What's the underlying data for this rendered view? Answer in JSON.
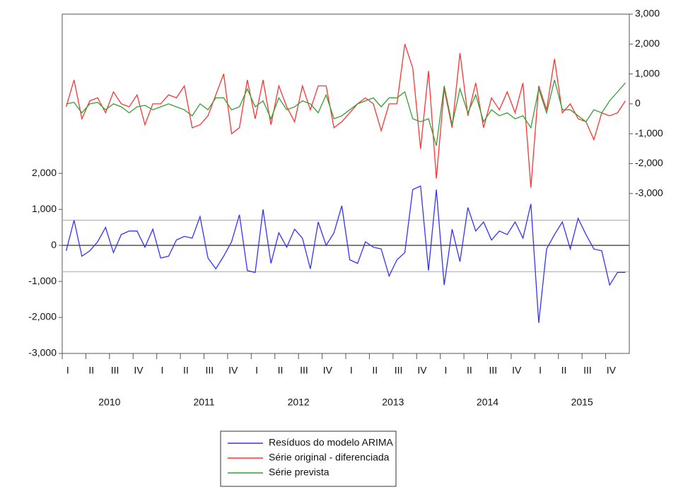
{
  "chart_data": {
    "type": "line",
    "categories": [
      "I",
      null,
      null,
      "II",
      null,
      null,
      "III",
      null,
      null,
      "IV",
      null,
      null,
      "I",
      null,
      null,
      "II",
      null,
      null,
      "III",
      null,
      null,
      "IV",
      null,
      null,
      "I",
      null,
      null,
      "II",
      null,
      null,
      "III",
      null,
      null,
      "IV",
      null,
      null,
      "I",
      null,
      null,
      "II",
      null,
      null,
      "III",
      null,
      null,
      "IV",
      null,
      null,
      "I",
      null,
      null,
      "II",
      null,
      null,
      "III",
      null,
      null,
      "IV",
      null,
      null,
      "I",
      null,
      null,
      "II",
      null,
      null,
      "III",
      null,
      null,
      "IV",
      null,
      null
    ],
    "years": [
      "2010",
      "2011",
      "2012",
      "2013",
      "2014",
      "2015"
    ],
    "series": [
      {
        "name": "Resíduos do modelo ARIMA",
        "color": "#3333ff",
        "axis": "y",
        "values": [
          -150,
          700,
          -300,
          -150,
          100,
          500,
          -200,
          300,
          400,
          400,
          -50,
          450,
          -350,
          -300,
          150,
          250,
          200,
          800,
          -350,
          -650,
          -300,
          100,
          850,
          -700,
          -750,
          1000,
          -500,
          350,
          -50,
          450,
          200,
          -650,
          650,
          0,
          350,
          1100,
          -400,
          -500,
          100,
          -50,
          -100,
          -850,
          -400,
          -200,
          1550,
          1650,
          -700,
          1550,
          -1100,
          450,
          -450,
          1050,
          400,
          650,
          150,
          400,
          300,
          650,
          200,
          1150,
          -2150,
          -100,
          300,
          650,
          -100,
          750,
          300,
          -100,
          -150,
          -1100,
          -750,
          -750
        ]
      },
      {
        "name": "Série original - diferenciada",
        "color": "#ff3333",
        "axis": "y2",
        "values": [
          -100,
          800,
          -500,
          100,
          200,
          -300,
          400,
          0,
          -100,
          300,
          -700,
          0,
          0,
          300,
          200,
          600,
          -800,
          -700,
          -400,
          300,
          1000,
          -1000,
          -800,
          800,
          -500,
          800,
          -700,
          600,
          -100,
          -600,
          600,
          -200,
          600,
          600,
          -800,
          -600,
          -300,
          0,
          200,
          0,
          -900,
          0,
          0,
          2000,
          1200,
          -1500,
          1100,
          -2500,
          500,
          -800,
          1700,
          -400,
          700,
          -800,
          200,
          -200,
          400,
          -300,
          700,
          -2800,
          600,
          -200,
          1500,
          -300,
          0,
          -500,
          -600,
          -1200,
          -300,
          -400,
          -300,
          100
        ]
      },
      {
        "name": "Série prevista",
        "color": "#33a033",
        "axis": "y2",
        "values": [
          0,
          50,
          -300,
          0,
          50,
          -200,
          0,
          -100,
          -300,
          -100,
          -50,
          -200,
          -100,
          0,
          -100,
          -200,
          -400,
          0,
          -200,
          200,
          200,
          -200,
          -100,
          500,
          -100,
          100,
          -500,
          200,
          -200,
          -100,
          100,
          0,
          -300,
          300,
          -500,
          -400,
          -200,
          0,
          100,
          200,
          -100,
          200,
          200,
          400,
          -500,
          -600,
          -500,
          -1400,
          600,
          -700,
          500,
          -300,
          300,
          -600,
          -200,
          -400,
          -300,
          -500,
          -400,
          -800,
          500,
          -300,
          800,
          -200,
          -200,
          -400,
          -600,
          -200,
          -300,
          100,
          400,
          700
        ]
      }
    ],
    "ylim": [
      -3000,
      6420
    ],
    "yticks": [
      {
        "value": -3000,
        "label": "-3,000"
      },
      {
        "value": -2000,
        "label": "-2,000"
      },
      {
        "value": -1000,
        "label": "-1,000"
      },
      0,
      {
        "value": 1000,
        "label": "1,000"
      },
      {
        "value": 2000,
        "label": "2,000"
      }
    ],
    "y2lim": [
      -8350,
      3000
    ],
    "y2ticks": [
      {
        "value": -3000,
        "label": "-3,000"
      },
      {
        "value": -2000,
        "label": "-2,000"
      },
      {
        "value": -1000,
        "label": "-1,000"
      },
      0,
      {
        "value": 1000,
        "label": "1,000"
      },
      {
        "value": 2000,
        "label": "2,000"
      },
      {
        "value": 3000,
        "label": "3,000"
      }
    ],
    "hlines": [
      0,
      700,
      -730
    ],
    "legend": "bottom"
  }
}
